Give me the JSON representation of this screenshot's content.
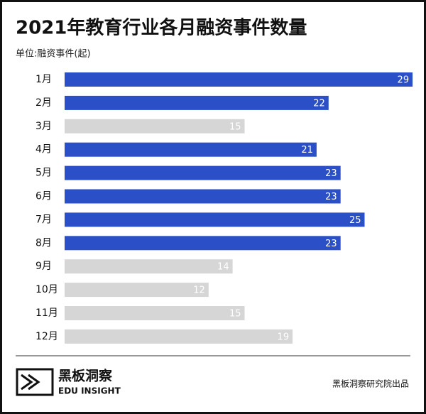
{
  "chart_data": {
    "type": "bar",
    "orientation": "horizontal",
    "title": "2021年教育行业各月融资事件数量",
    "subtitle": "单位:融资事件(起)",
    "categories": [
      "1月",
      "2月",
      "3月",
      "4月",
      "5月",
      "6月",
      "7月",
      "8月",
      "9月",
      "10月",
      "11月",
      "12月"
    ],
    "values": [
      29,
      22,
      15,
      21,
      23,
      23,
      25,
      23,
      14,
      12,
      15,
      19
    ],
    "colors": [
      "#2a4fc7",
      "#2a4fc7",
      "#d6d6d6",
      "#2a4fc7",
      "#2a4fc7",
      "#2a4fc7",
      "#2a4fc7",
      "#2a4fc7",
      "#d6d6d6",
      "#d6d6d6",
      "#d6d6d6",
      "#d6d6d6"
    ]
  },
  "footer": {
    "logo_name": "黑板洞察",
    "logo_tagline": "EDU INSIGHT",
    "source": "黑板洞察研究院出品"
  }
}
